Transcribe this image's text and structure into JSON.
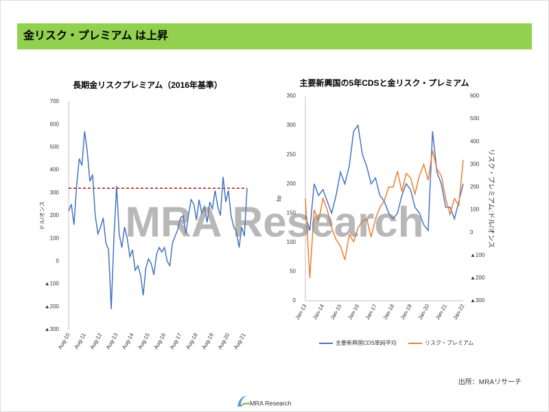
{
  "header": {
    "title": "金リスク・プレミアム は上昇"
  },
  "watermark": "MRA Research",
  "source": "出所：MRAリサーチ",
  "logo": "MRA Research",
  "chart_data": [
    {
      "type": "line",
      "title": "長期金リスクプレミアム（2016年基準）",
      "ylabel": "ドル/オンス",
      "color": "#4472c4",
      "negative_tick_color": "#c00000",
      "reference_line": {
        "value": 320,
        "color": "#c00000",
        "style": "dashed"
      },
      "categories": [
        "Aug-10",
        null,
        null,
        null,
        null,
        null,
        "Aug-11",
        null,
        null,
        null,
        null,
        null,
        "Aug-12",
        null,
        null,
        null,
        null,
        null,
        "Aug-13",
        null,
        null,
        null,
        null,
        null,
        "Aug-14",
        null,
        null,
        null,
        null,
        null,
        "Aug-15",
        null,
        null,
        null,
        null,
        null,
        "Aug-16",
        null,
        null,
        null,
        null,
        null,
        "Aug-17",
        null,
        null,
        null,
        null,
        null,
        "Aug-18",
        null,
        null,
        null,
        null,
        null,
        "Aug-19",
        null,
        null,
        null,
        null,
        null,
        "Aug-20",
        null,
        null,
        null,
        null,
        null,
        "Aug-21",
        null
      ],
      "values": [
        220,
        250,
        160,
        330,
        450,
        420,
        570,
        480,
        350,
        380,
        200,
        120,
        150,
        190,
        80,
        50,
        -210,
        100,
        330,
        120,
        60,
        150,
        100,
        20,
        50,
        -40,
        -20,
        -60,
        -150,
        -30,
        10,
        -10,
        -60,
        30,
        60,
        40,
        60,
        0,
        -20,
        80,
        110,
        140,
        190,
        200,
        120,
        200,
        270,
        250,
        180,
        270,
        210,
        240,
        170,
        260,
        230,
        310,
        240,
        200,
        370,
        260,
        310,
        200,
        150,
        130,
        60,
        150,
        110,
        320
      ],
      "ylim": [
        -300,
        700
      ],
      "yticks": [
        {
          "value": -300,
          "label": "▲300"
        },
        {
          "value": -200,
          "label": "▲200"
        },
        {
          "value": -100,
          "label": "▲100"
        },
        0,
        100,
        200,
        300,
        400,
        500,
        600,
        700
      ]
    },
    {
      "type": "line",
      "title": "主要新興国の5年CDSと金リスク・プレミアム",
      "ylabel": "bp",
      "y2label": "リスク・プレミアム:ドル/オンス",
      "negative_tick_color": "#c00000",
      "legend": "bottom",
      "categories": [
        "Jan-13",
        null,
        null,
        null,
        "Jan-14",
        null,
        null,
        null,
        "Jan-15",
        null,
        null,
        null,
        "Jan-16",
        null,
        null,
        null,
        "Jan-17",
        null,
        null,
        null,
        "Jan-18",
        null,
        null,
        null,
        "Jan-19",
        null,
        null,
        null,
        "Jan-20",
        null,
        null,
        null,
        "Jan-21",
        null,
        null,
        null,
        "Jan-22"
      ],
      "series": [
        {
          "name": "主要新興国CDS単純平均",
          "color": "#4472c4",
          "values": [
            145,
            120,
            200,
            180,
            190,
            170,
            150,
            180,
            220,
            200,
            230,
            290,
            300,
            250,
            230,
            200,
            210,
            180,
            170,
            150,
            140,
            150,
            180,
            200,
            190,
            160,
            150,
            130,
            120,
            290,
            220,
            200,
            160,
            160,
            140,
            170,
            200
          ]
        },
        {
          "name": "リスク・プレミアム",
          "color": "#ed7d31",
          "axis": "y2",
          "values": [
            150,
            -200,
            100,
            50,
            150,
            100,
            20,
            -30,
            -60,
            -120,
            -10,
            -40,
            20,
            50,
            60,
            -20,
            60,
            110,
            140,
            200,
            200,
            270,
            180,
            260,
            240,
            170,
            250,
            300,
            230,
            360,
            280,
            250,
            150,
            80,
            150,
            120,
            320
          ]
        }
      ],
      "ylim": [
        0,
        350
      ],
      "yticks": [
        0,
        50,
        100,
        150,
        200,
        250,
        300,
        350
      ],
      "y2lim": [
        -300,
        600
      ],
      "y2ticks": [
        {
          "value": -300,
          "label": "▲300"
        },
        {
          "value": -200,
          "label": "▲200"
        },
        {
          "value": -100,
          "label": "▲100"
        },
        0,
        100,
        200,
        300,
        400,
        500,
        600
      ]
    }
  ]
}
